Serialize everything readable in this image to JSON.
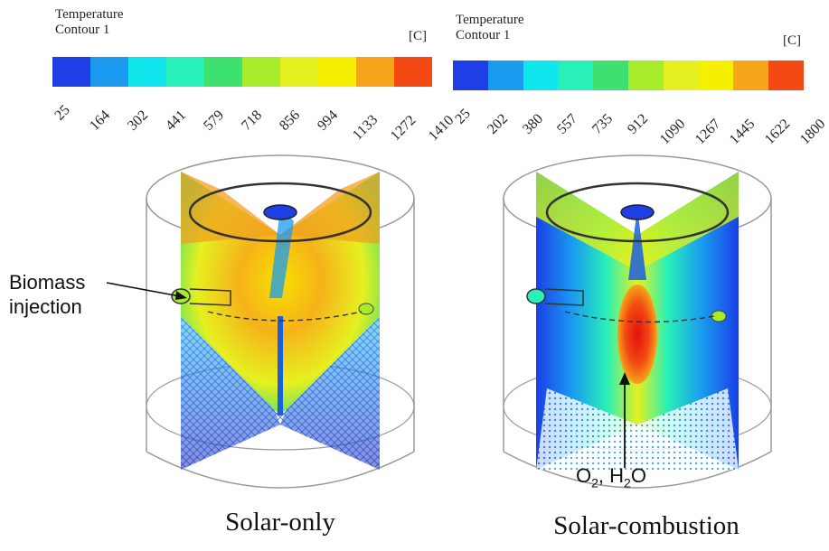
{
  "left_legend": {
    "title_line1": "Temperature",
    "title_line2": "Contour 1",
    "unit": "[C]",
    "ticks": [
      "25",
      "164",
      "302",
      "441",
      "579",
      "718",
      "856",
      "994",
      "1133",
      "1272",
      "1410"
    ]
  },
  "right_legend": {
    "title_line1": "Temperature",
    "title_line2": "Contour 1",
    "unit": "[C]",
    "ticks": [
      "25",
      "202",
      "380",
      "557",
      "735",
      "912",
      "1090",
      "1267",
      "1445",
      "1622",
      "1800"
    ]
  },
  "colormap": [
    "#1f3fe6",
    "#1a9bf0",
    "#10e6ee",
    "#28f0b8",
    "#3ee070",
    "#a6ec2a",
    "#e6f020",
    "#f6f000",
    "#f6a51a",
    "#f24a12"
  ],
  "left_panel": {
    "caption": "Solar-only",
    "annotation_line1": "Biomass",
    "annotation_line2": "injection"
  },
  "right_panel": {
    "caption": "Solar-combustion",
    "annotation_o": "O",
    "annotation_o_sub": "2",
    "annotation_sep": ", H",
    "annotation_h_sub": "2",
    "annotation_end": "O"
  }
}
